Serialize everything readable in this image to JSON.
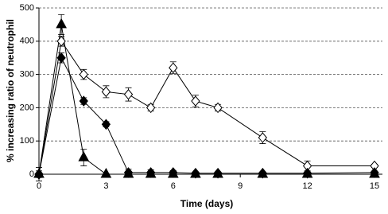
{
  "chart_data": {
    "type": "line",
    "xlabel": "Time (days)",
    "ylabel": "% increasing ratio of neutrophil",
    "x": [
      0,
      1,
      2,
      3,
      4,
      5,
      6,
      7,
      8,
      10,
      12,
      15
    ],
    "series": [
      {
        "color": "#000000",
        "fill": "#ffffff",
        "marker": "diamond",
        "values": [
          0,
          400,
          300,
          248,
          240,
          200,
          320,
          220,
          200,
          110,
          25,
          25
        ],
        "errors": [
          20,
          15,
          15,
          18,
          20,
          10,
          18,
          18,
          10,
          18,
          15,
          5
        ]
      },
      {
        "color": "#000000",
        "fill": "#000000",
        "marker": "diamond",
        "values": [
          0,
          350,
          220,
          150,
          5,
          5,
          5,
          3,
          3,
          3,
          3,
          5
        ],
        "errors": [
          20,
          15,
          10,
          8,
          10,
          8,
          6,
          4,
          4,
          4,
          4,
          4
        ]
      },
      {
        "color": "#000000",
        "fill": "#000000",
        "marker": "triangle",
        "values": [
          0,
          450,
          50,
          0,
          0,
          0,
          0,
          0,
          0,
          0,
          0,
          0
        ],
        "errors": [
          10,
          30,
          25,
          2,
          2,
          2,
          2,
          2,
          2,
          2,
          2,
          2
        ]
      }
    ],
    "xlim": [
      0,
      15
    ],
    "xticks": [
      0,
      3,
      6,
      9,
      12,
      15
    ],
    "ylim": [
      0,
      500
    ],
    "yticks": [
      0,
      100,
      200,
      300,
      400,
      500
    ],
    "grid": true
  }
}
